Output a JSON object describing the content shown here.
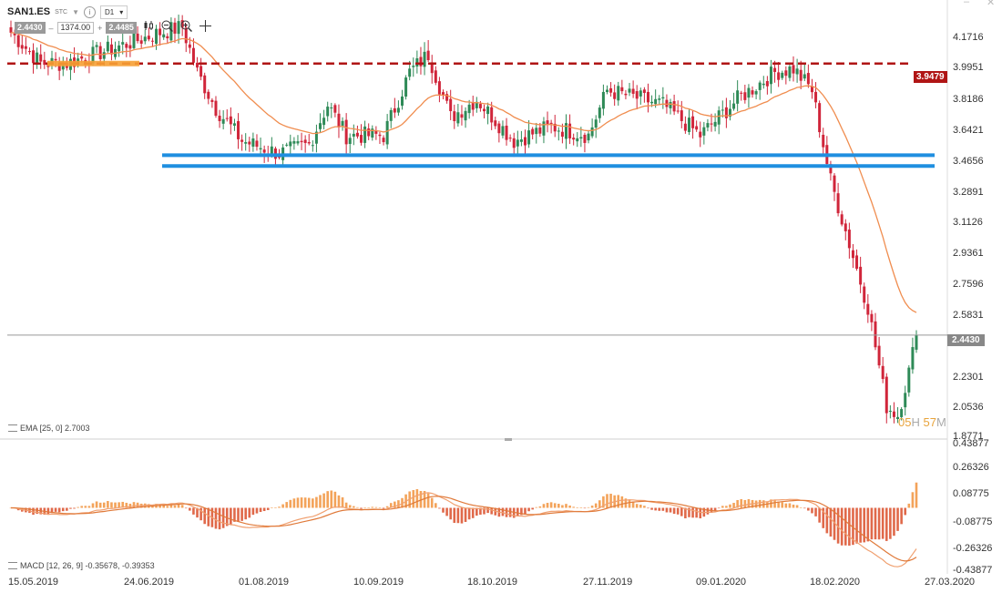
{
  "header": {
    "symbol": "SAN1.ES",
    "exchange": "STC",
    "timeframe": "D1",
    "bid": "2.4430",
    "quantity": "1374.00",
    "ask": "2.4485",
    "minus": "–",
    "plus": "+"
  },
  "toolbar_icons": [
    "candles-icon",
    "zoom-out-icon",
    "zoom-in-icon",
    "crosshair-icon"
  ],
  "price_axis": [
    "4.1716",
    "3.9951",
    "3.8186",
    "3.6421",
    "3.4656",
    "3.2891",
    "3.1126",
    "2.9361",
    "2.7596",
    "2.5831",
    "2.4430",
    "2.2301",
    "2.0536",
    "1.8771"
  ],
  "macd_axis": [
    "0.43877",
    "0.26326",
    "0.08775",
    "-0.08775",
    "-0.26326",
    "-0.43877"
  ],
  "date_axis": [
    "15.05.2019",
    "24.06.2019",
    "01.08.2019",
    "10.09.2019",
    "18.10.2019",
    "27.11.2019",
    "09.01.2020",
    "18.02.2020",
    "27.03.2020"
  ],
  "flags": {
    "resistance": "3.9479",
    "current": "2.4430"
  },
  "countdown": {
    "hours": "05",
    "h": "H",
    "minutes": "57",
    "m": "M"
  },
  "legends": {
    "ema": "EMA [25, 0] 2.7003",
    "macd": "MACD [12, 26, 9] -0.35678, -0.39353"
  },
  "colors": {
    "bull": "#2e8a57",
    "bear": "#d0253a",
    "ema": "#f08d4f",
    "resistance": "#b01515",
    "support": "#1f8fe0",
    "orange_zone": "#f7a035",
    "macd_hist": "#f3a35a"
  },
  "chart_data": {
    "type": "candlestick",
    "price_ylim": [
      1.8771,
      4.2598
    ],
    "resistance_level": 3.9479,
    "support_band": [
      3.38,
      3.44
    ],
    "current_price": 2.443,
    "close_anchors": [
      [
        0,
        4.12
      ],
      [
        8,
        3.95
      ],
      [
        15,
        3.95
      ],
      [
        30,
        4.05
      ],
      [
        40,
        4.12
      ],
      [
        46,
        4.15
      ],
      [
        50,
        3.9
      ],
      [
        55,
        3.7
      ],
      [
        62,
        3.52
      ],
      [
        72,
        3.45
      ],
      [
        80,
        3.5
      ],
      [
        85,
        3.72
      ],
      [
        90,
        3.55
      ],
      [
        100,
        3.55
      ],
      [
        107,
        3.9
      ],
      [
        112,
        4.0
      ],
      [
        118,
        3.65
      ],
      [
        125,
        3.75
      ],
      [
        135,
        3.52
      ],
      [
        145,
        3.6
      ],
      [
        155,
        3.55
      ],
      [
        160,
        3.8
      ],
      [
        175,
        3.72
      ],
      [
        185,
        3.55
      ],
      [
        195,
        3.75
      ],
      [
        205,
        3.9
      ],
      [
        210,
        3.92
      ],
      [
        215,
        3.8
      ],
      [
        220,
        3.3
      ],
      [
        225,
        2.95
      ],
      [
        230,
        2.6
      ],
      [
        235,
        2.05
      ],
      [
        238,
        2.0
      ],
      [
        241,
        2.24
      ],
      [
        243,
        2.443
      ]
    ],
    "ema_period": 25,
    "macd_ylim": [
      -0.43877,
      0.43877
    ],
    "macd_params": [
      12,
      26,
      9
    ],
    "macd_last": [
      -0.35678,
      -0.39353
    ]
  }
}
